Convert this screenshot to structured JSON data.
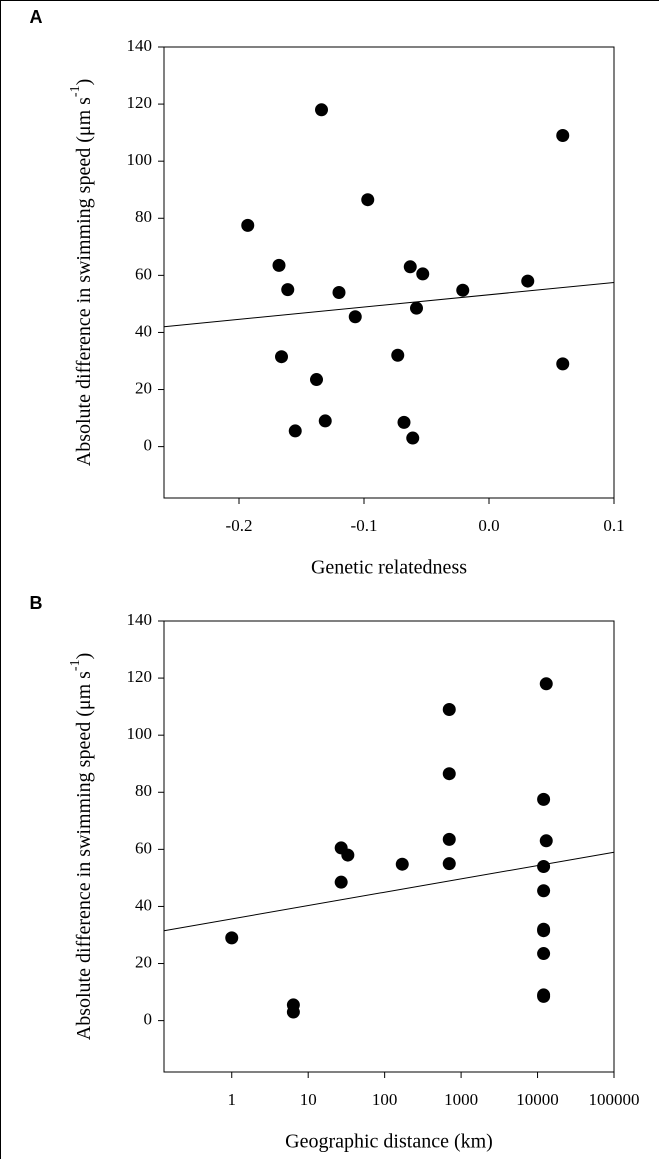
{
  "chart_data": [
    {
      "type": "scatter",
      "panel_label": "A",
      "x_label": "Genetic relatedness",
      "y_label": "Absolute difference in swimming speed (μm s",
      "y_label_sup": "-1",
      "y_label_end": ")",
      "log_x": false,
      "color": "#000000",
      "x": [
        -0.193,
        -0.168,
        -0.161,
        -0.166,
        -0.155,
        -0.134,
        -0.138,
        -0.131,
        -0.12,
        -0.107,
        -0.097,
        -0.073,
        -0.068,
        -0.063,
        -0.061,
        -0.058,
        -0.053,
        -0.021,
        0.031,
        0.059,
        0.059
      ],
      "y": [
        77.5,
        63.5,
        55,
        31.5,
        5.5,
        118,
        23.5,
        9,
        54,
        45.5,
        86.5,
        32,
        8.5,
        63,
        3,
        48.5,
        60.5,
        54.8,
        58,
        109,
        29
      ],
      "trendline": {
        "x": [
          -0.26,
          0.1
        ],
        "y": [
          42,
          57.5
        ]
      },
      "xlim": [
        -0.26,
        0.1
      ],
      "ylim": [
        -18,
        140
      ],
      "xticks": [
        -0.2,
        -0.1,
        {
          "value": 0,
          "label": "0.0"
        },
        0.1
      ],
      "yticks": [
        0,
        20,
        40,
        60,
        80,
        100,
        120,
        140
      ]
    },
    {
      "type": "scatter",
      "panel_label": "B",
      "x_label": "Geographic distance (km)",
      "y_label": "Absolute difference in swimming speed (μm s",
      "y_label_sup": "-1",
      "y_label_end": ")",
      "log_x": true,
      "color": "#000000",
      "x": [
        1,
        6.4,
        6.4,
        27,
        33,
        27,
        170,
        700,
        700,
        700,
        700,
        13000,
        12000,
        13000,
        12000,
        12000,
        12000,
        12000,
        12000,
        12000,
        12000
      ],
      "y": [
        29,
        5.5,
        3,
        60.5,
        58,
        48.5,
        54.8,
        109,
        86.5,
        63.5,
        55,
        118,
        77.5,
        63,
        54,
        45.5,
        32,
        31.5,
        23.5,
        9,
        8.5
      ],
      "trendline": {
        "x": [
          0.13,
          100000
        ],
        "y": [
          31.5,
          59
        ]
      },
      "xlim": [
        0.13,
        100000
      ],
      "ylim": [
        -18,
        140
      ],
      "xticks": [
        1,
        10,
        100,
        1000,
        10000,
        100000
      ],
      "yticks": [
        0,
        20,
        40,
        60,
        80,
        100,
        120,
        140
      ]
    }
  ]
}
